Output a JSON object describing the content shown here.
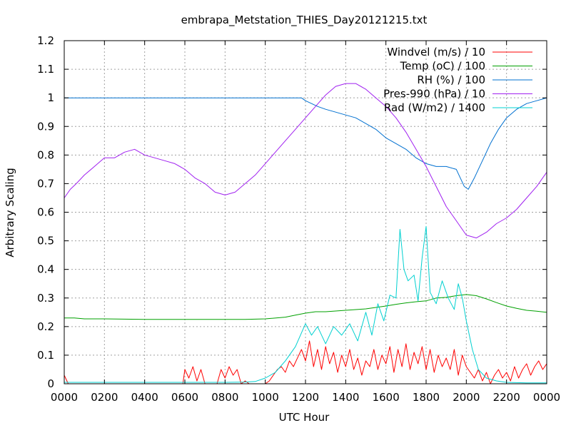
{
  "chart_data": {
    "type": "line",
    "title": "embrapa_Metstation_THIES_Day20121215.txt",
    "xlabel": "UTC Hour",
    "ylabel": "Arbitrary Scaling",
    "xlim": [
      0,
      24
    ],
    "ylim": [
      0,
      1.2
    ],
    "grid": true,
    "legend_position": "top-right",
    "x_ticks": [
      {
        "value": 0,
        "label": "0000"
      },
      {
        "value": 2,
        "label": "0200"
      },
      {
        "value": 4,
        "label": "0400"
      },
      {
        "value": 6,
        "label": "0600"
      },
      {
        "value": 8,
        "label": "0800"
      },
      {
        "value": 10,
        "label": "1000"
      },
      {
        "value": 12,
        "label": "1200"
      },
      {
        "value": 14,
        "label": "1400"
      },
      {
        "value": 16,
        "label": "1600"
      },
      {
        "value": 18,
        "label": "1800"
      },
      {
        "value": 20,
        "label": "2000"
      },
      {
        "value": 22,
        "label": "2200"
      },
      {
        "value": 24,
        "label": "0000"
      }
    ],
    "y_ticks": [
      {
        "value": 0,
        "label": "0"
      },
      {
        "value": 0.1,
        "label": "0.1"
      },
      {
        "value": 0.2,
        "label": "0.2"
      },
      {
        "value": 0.3,
        "label": "0.3"
      },
      {
        "value": 0.4,
        "label": "0.4"
      },
      {
        "value": 0.5,
        "label": "0.5"
      },
      {
        "value": 0.6,
        "label": "0.6"
      },
      {
        "value": 0.7,
        "label": "0.7"
      },
      {
        "value": 0.8,
        "label": "0.8"
      },
      {
        "value": 0.9,
        "label": "0.9"
      },
      {
        "value": 1.0,
        "label": "1"
      },
      {
        "value": 1.1,
        "label": "1.1"
      },
      {
        "value": 1.2,
        "label": "1.2"
      }
    ],
    "series": [
      {
        "name": "Windvel (m/s) / 10",
        "color": "#ff0000",
        "x": [
          0,
          0.2,
          0.5,
          1,
          2,
          3,
          4,
          5,
          5.9,
          6,
          6.2,
          6.4,
          6.6,
          6.8,
          7.0,
          7.2,
          7.4,
          7.6,
          7.8,
          8.0,
          8.2,
          8.4,
          8.6,
          8.8,
          9.0,
          9.2,
          9.4,
          9.6,
          9.8,
          10.0,
          10.2,
          10.4,
          10.6,
          10.8,
          11.0,
          11.2,
          11.4,
          11.6,
          11.8,
          12.0,
          12.2,
          12.4,
          12.6,
          12.8,
          13.0,
          13.2,
          13.4,
          13.6,
          13.8,
          14.0,
          14.2,
          14.4,
          14.6,
          14.8,
          15.0,
          15.2,
          15.4,
          15.6,
          15.8,
          16.0,
          16.2,
          16.4,
          16.6,
          16.8,
          17.0,
          17.2,
          17.4,
          17.6,
          17.8,
          18.0,
          18.2,
          18.4,
          18.6,
          18.8,
          19.0,
          19.2,
          19.4,
          19.6,
          19.8,
          20.0,
          20.2,
          20.4,
          20.6,
          20.8,
          21.0,
          21.2,
          21.4,
          21.6,
          21.8,
          22.0,
          22.2,
          22.4,
          22.6,
          22.8,
          23.0,
          23.2,
          23.4,
          23.6,
          23.8,
          24.0
        ],
        "y": [
          0.03,
          0.0,
          0.0,
          0.0,
          0.0,
          0.0,
          0.0,
          0.0,
          0.0,
          0.05,
          0.02,
          0.06,
          0.01,
          0.05,
          0.0,
          0.0,
          0.0,
          0.0,
          0.05,
          0.02,
          0.06,
          0.03,
          0.05,
          0.0,
          0.01,
          0.0,
          0.0,
          0.0,
          0.0,
          0.0,
          0.01,
          0.03,
          0.05,
          0.06,
          0.04,
          0.08,
          0.06,
          0.09,
          0.12,
          0.08,
          0.15,
          0.06,
          0.12,
          0.05,
          0.13,
          0.07,
          0.11,
          0.04,
          0.1,
          0.06,
          0.12,
          0.05,
          0.09,
          0.03,
          0.08,
          0.06,
          0.12,
          0.05,
          0.1,
          0.07,
          0.13,
          0.04,
          0.12,
          0.06,
          0.14,
          0.05,
          0.11,
          0.07,
          0.13,
          0.05,
          0.12,
          0.04,
          0.1,
          0.06,
          0.09,
          0.05,
          0.12,
          0.03,
          0.1,
          0.06,
          0.04,
          0.02,
          0.05,
          0.01,
          0.04,
          0.0,
          0.03,
          0.05,
          0.02,
          0.04,
          0.01,
          0.06,
          0.02,
          0.05,
          0.07,
          0.03,
          0.06,
          0.08,
          0.05,
          0.07
        ]
      },
      {
        "name": "Temp (oC) / 100",
        "color": "#00a000",
        "x": [
          0,
          0.5,
          1,
          2,
          4,
          6,
          8,
          9,
          10,
          11,
          11.5,
          12,
          12.5,
          13,
          14,
          15,
          15.5,
          16,
          16.5,
          17,
          17.5,
          18,
          18.5,
          19,
          19.5,
          20,
          20.5,
          21,
          21.5,
          22,
          22.5,
          23,
          23.5,
          24
        ],
        "y": [
          0.23,
          0.23,
          0.227,
          0.227,
          0.225,
          0.225,
          0.225,
          0.225,
          0.227,
          0.233,
          0.24,
          0.247,
          0.252,
          0.252,
          0.257,
          0.262,
          0.267,
          0.272,
          0.278,
          0.283,
          0.287,
          0.29,
          0.3,
          0.302,
          0.308,
          0.312,
          0.308,
          0.297,
          0.284,
          0.272,
          0.264,
          0.257,
          0.254,
          0.25
        ]
      },
      {
        "name": "RH (%) / 100",
        "color": "#0070d0",
        "x": [
          0,
          6,
          10,
          11.8,
          12.0,
          12.3,
          12.6,
          13,
          13.5,
          14,
          14.5,
          15,
          15.5,
          16,
          16.5,
          17,
          17.5,
          18,
          18.5,
          19,
          19.5,
          19.7,
          19.9,
          20.1,
          20.4,
          20.8,
          21.2,
          21.6,
          22,
          22.5,
          23,
          23.5,
          24
        ],
        "y": [
          1.0,
          1.0,
          1.0,
          1.0,
          0.99,
          0.98,
          0.97,
          0.96,
          0.95,
          0.94,
          0.93,
          0.91,
          0.89,
          0.86,
          0.84,
          0.82,
          0.79,
          0.77,
          0.76,
          0.76,
          0.75,
          0.72,
          0.69,
          0.68,
          0.72,
          0.78,
          0.84,
          0.89,
          0.93,
          0.96,
          0.98,
          0.99,
          1.0
        ]
      },
      {
        "name": "Pres-990 (hPa) / 10",
        "color": "#a020f0",
        "x": [
          0,
          0.3,
          0.6,
          1.0,
          1.5,
          2.0,
          2.5,
          3.0,
          3.5,
          4.0,
          4.5,
          5.0,
          5.5,
          6.0,
          6.5,
          7.0,
          7.5,
          8.0,
          8.5,
          9.0,
          9.5,
          10.0,
          10.5,
          11.0,
          11.5,
          12.0,
          12.5,
          13.0,
          13.5,
          14.0,
          14.5,
          15.0,
          15.5,
          16.0,
          16.5,
          17.0,
          17.5,
          18.0,
          18.5,
          19.0,
          19.5,
          20.0,
          20.5,
          21.0,
          21.5,
          22.0,
          22.5,
          23.0,
          23.5,
          24.0
        ],
        "y": [
          0.65,
          0.68,
          0.7,
          0.73,
          0.76,
          0.79,
          0.79,
          0.81,
          0.82,
          0.8,
          0.79,
          0.78,
          0.77,
          0.75,
          0.72,
          0.7,
          0.67,
          0.66,
          0.67,
          0.7,
          0.73,
          0.77,
          0.81,
          0.85,
          0.89,
          0.93,
          0.97,
          1.01,
          1.04,
          1.05,
          1.05,
          1.03,
          1.0,
          0.97,
          0.93,
          0.88,
          0.82,
          0.76,
          0.69,
          0.62,
          0.57,
          0.52,
          0.51,
          0.53,
          0.56,
          0.58,
          0.61,
          0.65,
          0.69,
          0.74
        ]
      },
      {
        "name": "Rad (W/m2) / 1400",
        "color": "#00d0d0",
        "x": [
          0,
          6,
          8,
          9,
          9.5,
          10.0,
          10.5,
          11.0,
          11.5,
          12.0,
          12.3,
          12.6,
          13.0,
          13.4,
          13.8,
          14.2,
          14.6,
          15.0,
          15.3,
          15.6,
          15.9,
          16.2,
          16.5,
          16.7,
          16.9,
          17.1,
          17.4,
          17.6,
          17.8,
          18.0,
          18.2,
          18.5,
          18.8,
          19.1,
          19.4,
          19.6,
          19.8,
          20.0,
          20.3,
          20.6,
          21.0,
          21.5,
          22,
          23,
          24
        ],
        "y": [
          0.005,
          0.005,
          0.005,
          0.006,
          0.008,
          0.02,
          0.04,
          0.08,
          0.13,
          0.21,
          0.17,
          0.2,
          0.14,
          0.2,
          0.17,
          0.21,
          0.15,
          0.25,
          0.17,
          0.28,
          0.22,
          0.31,
          0.3,
          0.54,
          0.4,
          0.36,
          0.38,
          0.29,
          0.44,
          0.55,
          0.32,
          0.28,
          0.36,
          0.3,
          0.26,
          0.35,
          0.3,
          0.22,
          0.12,
          0.05,
          0.02,
          0.01,
          0.005,
          0.003,
          0.003
        ]
      }
    ]
  }
}
